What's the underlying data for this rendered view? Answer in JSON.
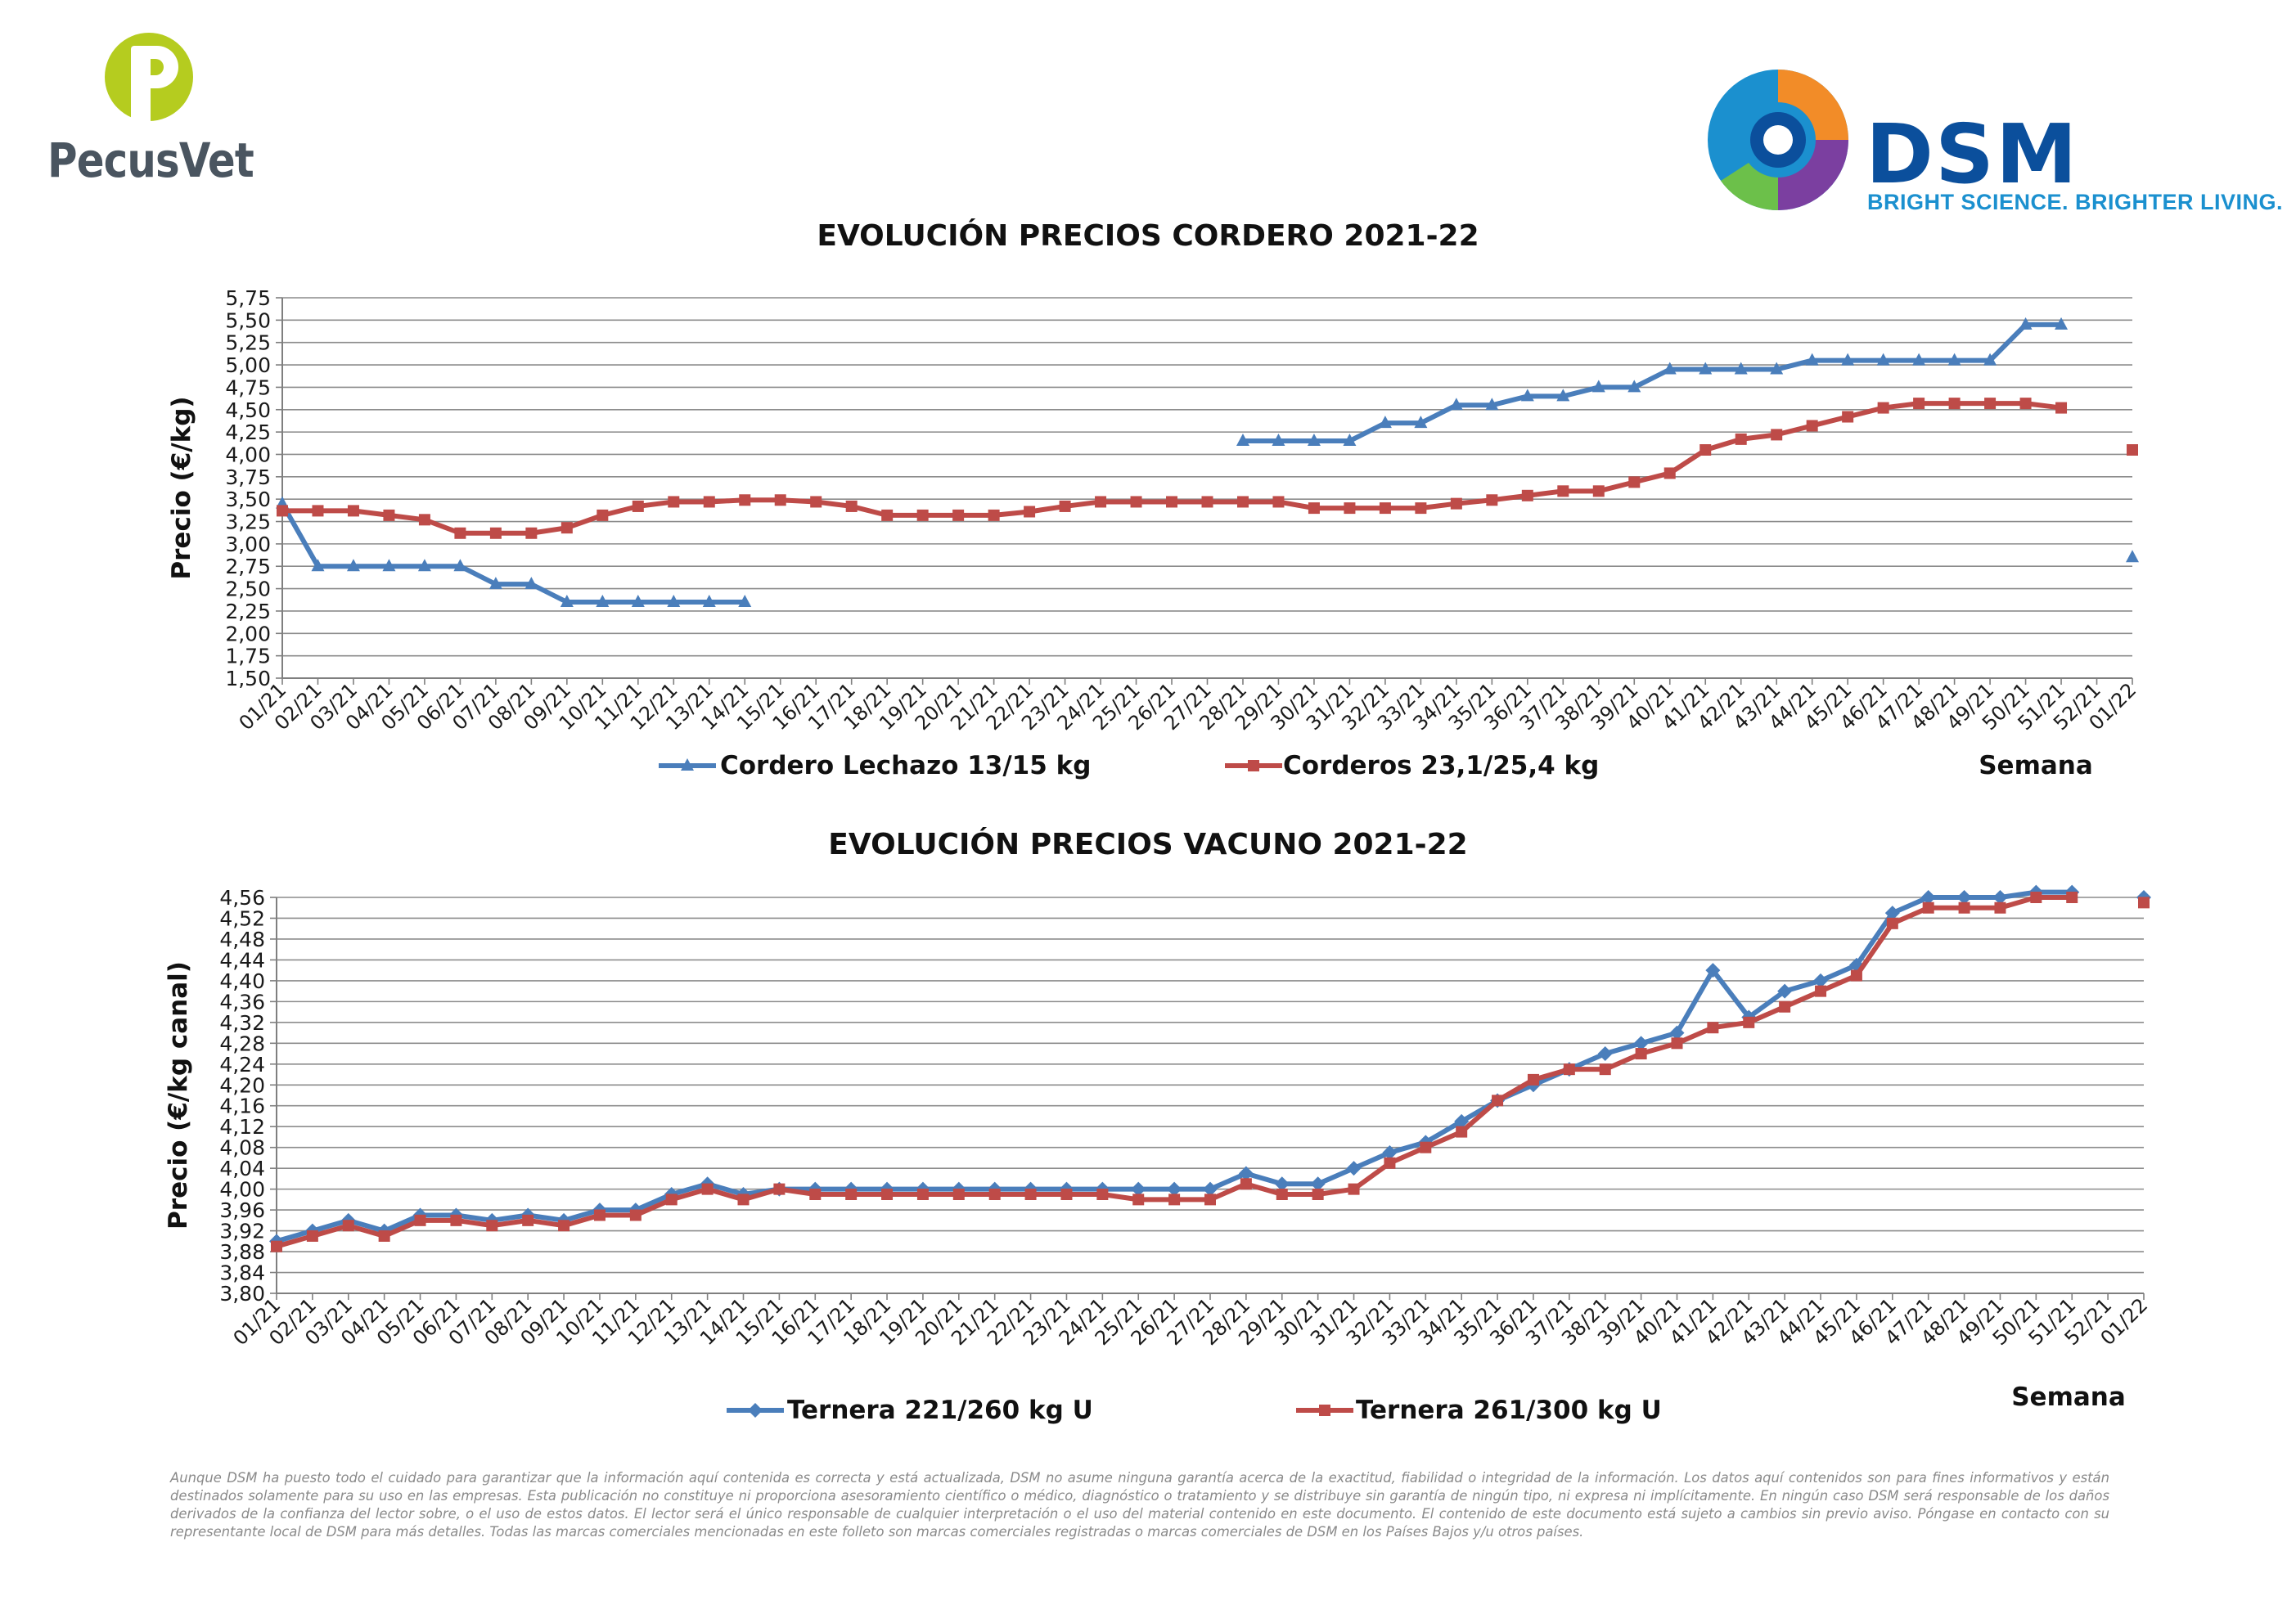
{
  "logos": {
    "pecusvet": {
      "name": "PecusVet",
      "color": "#4a5560",
      "accent": "#b5cc1f",
      "icon": "pecusvet-p-icon"
    },
    "dsm": {
      "name": "DSM",
      "tagline": "BRIGHT SCIENCE. BRIGHTER LIVING.",
      "color": "#0b4f9c",
      "tagline_color": "#1b90cf",
      "icon": "dsm-swirl-icon"
    }
  },
  "chart_data": [
    {
      "type": "line",
      "title": "EVOLUCIÓN PRECIOS CORDERO 2021-22",
      "ylabel": "Precio (€/kg)",
      "xlabel": "Semana",
      "ylim": [
        1.5,
        5.75
      ],
      "yticks": [
        "1,50",
        "1,75",
        "2,00",
        "2,25",
        "2,50",
        "2,75",
        "3,00",
        "3,25",
        "3,50",
        "3,75",
        "4,00",
        "4,25",
        "4,50",
        "4,75",
        "5,00",
        "5,25",
        "5,50",
        "5,75"
      ],
      "categories": [
        "01/21",
        "02/21",
        "03/21",
        "04/21",
        "05/21",
        "06/21",
        "07/21",
        "08/21",
        "09/21",
        "10/21",
        "11/21",
        "12/21",
        "13/21",
        "14/21",
        "15/21",
        "16/21",
        "17/21",
        "18/21",
        "19/21",
        "20/21",
        "21/21",
        "22/21",
        "23/21",
        "24/21",
        "25/21",
        "26/21",
        "27/21",
        "28/21",
        "29/21",
        "30/21",
        "31/21",
        "32/21",
        "33/21",
        "34/21",
        "35/21",
        "36/21",
        "37/21",
        "38/21",
        "39/21",
        "40/21",
        "41/21",
        "42/21",
        "43/21",
        "44/21",
        "45/21",
        "46/21",
        "47/21",
        "48/21",
        "49/21",
        "50/21",
        "51/21",
        "52/21",
        "01/22"
      ],
      "grid": true,
      "legend_position": "bottom",
      "series": [
        {
          "name": "Cordero Lechazo 13/15 kg",
          "color": "#4a7ebb",
          "marker": "triangle",
          "values": [
            3.45,
            2.75,
            2.75,
            2.75,
            2.75,
            2.75,
            2.55,
            2.55,
            2.35,
            2.35,
            2.35,
            2.35,
            2.35,
            2.35,
            null,
            null,
            null,
            null,
            null,
            null,
            null,
            null,
            null,
            null,
            null,
            null,
            null,
            4.15,
            4.15,
            4.15,
            4.15,
            4.35,
            4.35,
            4.55,
            4.55,
            4.65,
            4.65,
            4.75,
            4.75,
            4.95,
            4.95,
            4.95,
            4.95,
            5.05,
            5.05,
            5.05,
            5.05,
            5.05,
            5.05,
            5.45,
            5.45,
            null,
            2.85
          ]
        },
        {
          "name": "Corderos 23,1/25,4 kg",
          "color": "#be4b48",
          "marker": "square",
          "values": [
            3.37,
            3.37,
            3.37,
            3.32,
            3.27,
            3.12,
            3.12,
            3.12,
            3.18,
            3.32,
            3.42,
            3.47,
            3.47,
            3.49,
            3.49,
            3.47,
            3.42,
            3.32,
            3.32,
            3.32,
            3.32,
            3.36,
            3.42,
            3.47,
            3.47,
            3.47,
            3.47,
            3.47,
            3.47,
            3.4,
            3.4,
            3.4,
            3.4,
            3.45,
            3.49,
            3.54,
            3.59,
            3.59,
            3.69,
            3.79,
            4.05,
            4.17,
            4.22,
            4.32,
            4.42,
            4.52,
            4.57,
            4.57,
            4.57,
            4.57,
            4.52,
            null,
            4.05
          ]
        }
      ]
    },
    {
      "type": "line",
      "title": "EVOLUCIÓN PRECIOS VACUNO 2021-22",
      "ylabel": "Precio (€/kg canal)",
      "xlabel": "Semana",
      "ylim": [
        3.8,
        4.56
      ],
      "yticks": [
        "3,80",
        "3,84",
        "3,88",
        "3,92",
        "3,96",
        "4,00",
        "4,04",
        "4,08",
        "4,12",
        "4,16",
        "4,20",
        "4,24",
        "4,28",
        "4,32",
        "4,36",
        "4,40",
        "4,44",
        "4,48",
        "4,52",
        "4,56"
      ],
      "categories": [
        "01/21",
        "02/21",
        "03/21",
        "04/21",
        "05/21",
        "06/21",
        "07/21",
        "08/21",
        "09/21",
        "10/21",
        "11/21",
        "12/21",
        "13/21",
        "14/21",
        "15/21",
        "16/21",
        "17/21",
        "18/21",
        "19/21",
        "20/21",
        "21/21",
        "22/21",
        "23/21",
        "24/21",
        "25/21",
        "26/21",
        "27/21",
        "28/21",
        "29/21",
        "30/21",
        "31/21",
        "32/21",
        "33/21",
        "34/21",
        "35/21",
        "36/21",
        "37/21",
        "38/21",
        "39/21",
        "40/21",
        "41/21",
        "42/21",
        "43/21",
        "44/21",
        "45/21",
        "46/21",
        "47/21",
        "48/21",
        "49/21",
        "50/21",
        "51/21",
        "52/21",
        "01/22"
      ],
      "grid": true,
      "legend_position": "bottom",
      "series": [
        {
          "name": "Ternera 221/260 kg U",
          "color": "#4a7ebb",
          "marker": "diamond",
          "values": [
            3.9,
            3.92,
            3.94,
            3.92,
            3.95,
            3.95,
            3.94,
            3.95,
            3.94,
            3.96,
            3.96,
            3.99,
            4.01,
            3.99,
            4.0,
            4.0,
            4.0,
            4.0,
            4.0,
            4.0,
            4.0,
            4.0,
            4.0,
            4.0,
            4.0,
            4.0,
            4.0,
            4.03,
            4.01,
            4.01,
            4.04,
            4.07,
            4.09,
            4.13,
            4.17,
            4.2,
            4.23,
            4.26,
            4.28,
            4.3,
            4.42,
            4.33,
            4.38,
            4.4,
            4.43,
            4.53,
            4.56,
            4.56,
            4.56,
            4.57,
            4.57,
            null,
            4.56
          ]
        },
        {
          "name": "Ternera 261/300 kg U",
          "color": "#be4b48",
          "marker": "square",
          "values": [
            3.89,
            3.91,
            3.93,
            3.91,
            3.94,
            3.94,
            3.93,
            3.94,
            3.93,
            3.95,
            3.95,
            3.98,
            4.0,
            3.98,
            4.0,
            3.99,
            3.99,
            3.99,
            3.99,
            3.99,
            3.99,
            3.99,
            3.99,
            3.99,
            3.98,
            3.98,
            3.98,
            4.01,
            3.99,
            3.99,
            4.0,
            4.05,
            4.08,
            4.11,
            4.17,
            4.21,
            4.23,
            4.23,
            4.26,
            4.28,
            4.31,
            4.32,
            4.35,
            4.38,
            4.41,
            4.51,
            4.54,
            4.54,
            4.54,
            4.56,
            4.56,
            null,
            4.55
          ]
        }
      ]
    }
  ],
  "disclaimer": "Aunque DSM ha puesto todo el cuidado para garantizar que la información aquí contenida es correcta y está actualizada, DSM no asume ninguna garantía acerca de la exactitud, fiabilidad o integridad de la información. Los datos aquí contenidos son para fines informativos y están destinados solamente para su uso en las empresas. Esta publicación no constituye ni proporciona asesoramiento científico o médico, diagnóstico o tratamiento y se distribuye sin garantía de ningún tipo, ni expresa ni implícitamente. En ningún caso DSM será responsable de los daños derivados de la confianza del lector sobre, o el uso de estos datos. El lector será el único responsable de cualquier interpretación o el uso del material contenido en este documento. El contenido de este documento está sujeto a cambios sin previo aviso. Póngase en contacto con su representante local de DSM para más detalles. Todas las marcas comerciales mencionadas en este folleto son marcas comerciales registradas o marcas comerciales de DSM en los Países Bajos y/u otros países."
}
